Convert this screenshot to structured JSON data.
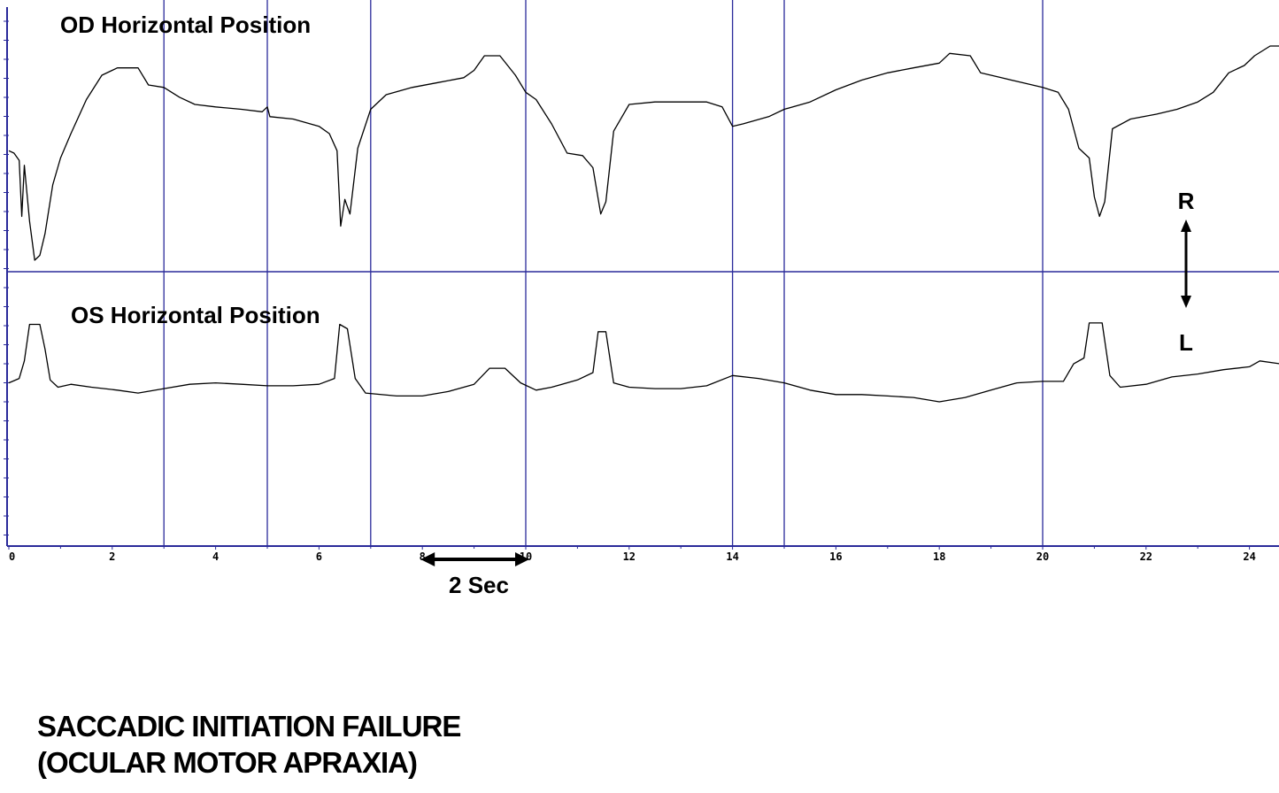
{
  "chart_data": {
    "type": "line",
    "x_unit": "s",
    "xlim": [
      0,
      24.6
    ],
    "x_ticks": [
      0,
      2,
      4,
      6,
      8,
      10,
      12,
      14,
      16,
      18,
      20,
      22,
      24
    ],
    "x_tick_labels": [
      "0",
      "2",
      "4",
      "6",
      "8",
      "10",
      "12",
      "14",
      "16",
      "18",
      "20",
      "22",
      "24"
    ],
    "event_markers_s": [
      3,
      5,
      7,
      10,
      14,
      15,
      20
    ],
    "scale_bar": {
      "from": 8,
      "to": 10,
      "label": "2 Sec"
    },
    "direction_labels": {
      "up": "R",
      "down": "L"
    },
    "series": [
      {
        "name": "OD Horizontal Position",
        "ylim": [
          0,
          10
        ],
        "points": [
          [
            0,
            4.9
          ],
          [
            0.1,
            4.8
          ],
          [
            0.2,
            4.5
          ],
          [
            0.25,
            2.2
          ],
          [
            0.3,
            4.3
          ],
          [
            0.4,
            2.0
          ],
          [
            0.5,
            0.4
          ],
          [
            0.6,
            0.6
          ],
          [
            0.7,
            1.5
          ],
          [
            0.85,
            3.5
          ],
          [
            1.0,
            4.6
          ],
          [
            1.2,
            5.6
          ],
          [
            1.5,
            7.0
          ],
          [
            1.8,
            8.0
          ],
          [
            2.1,
            8.3
          ],
          [
            2.5,
            8.3
          ],
          [
            2.7,
            7.6
          ],
          [
            3.0,
            7.5
          ],
          [
            3.3,
            7.1
          ],
          [
            3.6,
            6.8
          ],
          [
            4.0,
            6.7
          ],
          [
            4.5,
            6.6
          ],
          [
            4.9,
            6.5
          ],
          [
            5.0,
            6.7
          ],
          [
            5.05,
            6.3
          ],
          [
            5.5,
            6.2
          ],
          [
            6.0,
            5.9
          ],
          [
            6.2,
            5.6
          ],
          [
            6.35,
            4.9
          ],
          [
            6.42,
            1.8
          ],
          [
            6.5,
            2.9
          ],
          [
            6.6,
            2.3
          ],
          [
            6.75,
            5.0
          ],
          [
            7.0,
            6.6
          ],
          [
            7.3,
            7.2
          ],
          [
            7.8,
            7.5
          ],
          [
            8.3,
            7.7
          ],
          [
            8.8,
            7.9
          ],
          [
            9.0,
            8.2
          ],
          [
            9.2,
            8.8
          ],
          [
            9.5,
            8.8
          ],
          [
            9.8,
            8.0
          ],
          [
            10.0,
            7.3
          ],
          [
            10.2,
            7.0
          ],
          [
            10.5,
            6.0
          ],
          [
            10.8,
            4.8
          ],
          [
            11.1,
            4.7
          ],
          [
            11.3,
            4.2
          ],
          [
            11.45,
            2.3
          ],
          [
            11.55,
            2.8
          ],
          [
            11.7,
            5.7
          ],
          [
            12.0,
            6.8
          ],
          [
            12.5,
            6.9
          ],
          [
            13.0,
            6.9
          ],
          [
            13.5,
            6.9
          ],
          [
            13.8,
            6.7
          ],
          [
            14.0,
            5.9
          ],
          [
            14.2,
            6.0
          ],
          [
            14.7,
            6.3
          ],
          [
            15.0,
            6.6
          ],
          [
            15.5,
            6.9
          ],
          [
            16.0,
            7.4
          ],
          [
            16.5,
            7.8
          ],
          [
            17.0,
            8.1
          ],
          [
            17.5,
            8.3
          ],
          [
            18.0,
            8.5
          ],
          [
            18.2,
            8.9
          ],
          [
            18.6,
            8.8
          ],
          [
            18.8,
            8.1
          ],
          [
            19.2,
            7.9
          ],
          [
            19.6,
            7.7
          ],
          [
            20.0,
            7.5
          ],
          [
            20.3,
            7.3
          ],
          [
            20.5,
            6.6
          ],
          [
            20.7,
            5.0
          ],
          [
            20.9,
            4.6
          ],
          [
            21.0,
            3.0
          ],
          [
            21.1,
            2.2
          ],
          [
            21.2,
            2.8
          ],
          [
            21.35,
            5.8
          ],
          [
            21.7,
            6.2
          ],
          [
            22.2,
            6.4
          ],
          [
            22.6,
            6.6
          ],
          [
            23.0,
            6.9
          ],
          [
            23.3,
            7.3
          ],
          [
            23.6,
            8.1
          ],
          [
            23.9,
            8.4
          ],
          [
            24.1,
            8.8
          ],
          [
            24.4,
            9.2
          ],
          [
            24.6,
            9.2
          ]
        ]
      },
      {
        "name": "OS Horizontal Position",
        "ylim": [
          0,
          10
        ],
        "points": [
          [
            0,
            5.3
          ],
          [
            0.2,
            5.6
          ],
          [
            0.3,
            6.8
          ],
          [
            0.4,
            9.3
          ],
          [
            0.6,
            9.3
          ],
          [
            0.7,
            7.6
          ],
          [
            0.8,
            5.5
          ],
          [
            0.95,
            5.0
          ],
          [
            1.2,
            5.2
          ],
          [
            1.6,
            5.0
          ],
          [
            2.1,
            4.8
          ],
          [
            2.5,
            4.6
          ],
          [
            3.0,
            4.9
          ],
          [
            3.5,
            5.2
          ],
          [
            4.0,
            5.3
          ],
          [
            4.5,
            5.2
          ],
          [
            5.0,
            5.1
          ],
          [
            5.5,
            5.1
          ],
          [
            6.0,
            5.2
          ],
          [
            6.3,
            5.6
          ],
          [
            6.4,
            9.3
          ],
          [
            6.55,
            9.0
          ],
          [
            6.7,
            5.6
          ],
          [
            6.9,
            4.6
          ],
          [
            7.5,
            4.4
          ],
          [
            8.0,
            4.4
          ],
          [
            8.5,
            4.7
          ],
          [
            9.0,
            5.2
          ],
          [
            9.3,
            6.3
          ],
          [
            9.6,
            6.3
          ],
          [
            9.9,
            5.3
          ],
          [
            10.2,
            4.8
          ],
          [
            10.5,
            5.0
          ],
          [
            11.0,
            5.5
          ],
          [
            11.3,
            6.0
          ],
          [
            11.4,
            8.8
          ],
          [
            11.55,
            8.8
          ],
          [
            11.7,
            5.3
          ],
          [
            12.0,
            5.0
          ],
          [
            12.5,
            4.9
          ],
          [
            13.0,
            4.9
          ],
          [
            13.5,
            5.1
          ],
          [
            14.0,
            5.8
          ],
          [
            14.5,
            5.6
          ],
          [
            15.0,
            5.3
          ],
          [
            15.5,
            4.8
          ],
          [
            16.0,
            4.5
          ],
          [
            16.5,
            4.5
          ],
          [
            17.0,
            4.4
          ],
          [
            17.5,
            4.3
          ],
          [
            18.0,
            4.0
          ],
          [
            18.5,
            4.3
          ],
          [
            19.0,
            4.8
          ],
          [
            19.5,
            5.3
          ],
          [
            20.0,
            5.4
          ],
          [
            20.4,
            5.4
          ],
          [
            20.6,
            6.6
          ],
          [
            20.8,
            7.0
          ],
          [
            20.9,
            9.4
          ],
          [
            21.15,
            9.4
          ],
          [
            21.3,
            5.8
          ],
          [
            21.5,
            5.0
          ],
          [
            22.0,
            5.2
          ],
          [
            22.5,
            5.7
          ],
          [
            23.0,
            5.9
          ],
          [
            23.5,
            6.2
          ],
          [
            24.0,
            6.4
          ],
          [
            24.2,
            6.8
          ],
          [
            24.6,
            6.6
          ]
        ]
      }
    ]
  },
  "caption": {
    "line1": "SACCADIC INITIATION FAILURE",
    "line2": "(OCULAR MOTOR APRAXIA)"
  }
}
